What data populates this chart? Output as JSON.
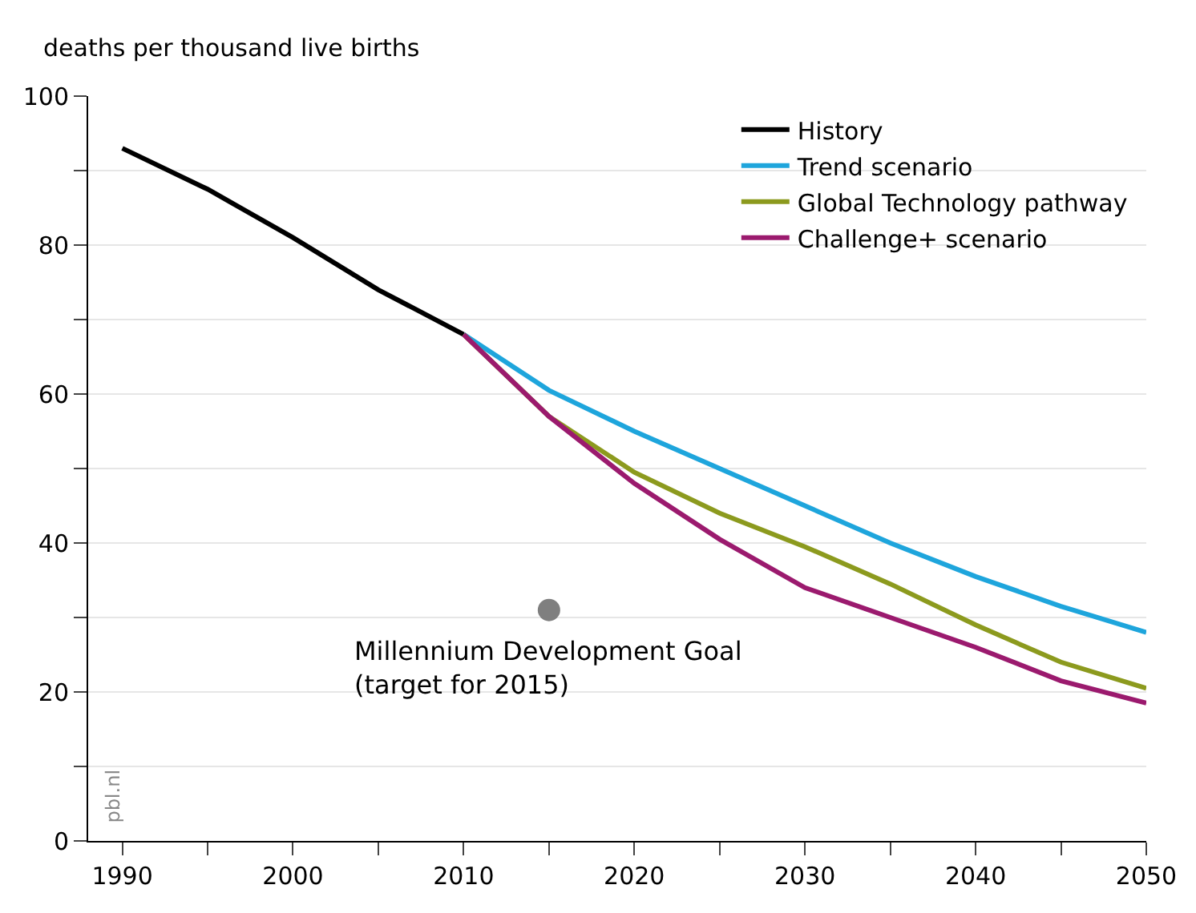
{
  "chart_data": {
    "type": "line",
    "ylabel": "deaths per thousand live births",
    "xlim": [
      1988,
      2050
    ],
    "xticks": [
      1990,
      {
        "value": 1995,
        "label": null
      },
      2000,
      {
        "value": 2005,
        "label": null
      },
      2010,
      {
        "value": 2015,
        "label": null
      },
      2020,
      {
        "value": 2025,
        "label": null
      },
      2030,
      {
        "value": 2035,
        "label": null
      },
      2040,
      {
        "value": 2045,
        "label": null
      },
      2050
    ],
    "ylim": [
      0,
      100
    ],
    "yticks": [
      0,
      {
        "value": 10,
        "label": null
      },
      20,
      {
        "value": 30,
        "label": null
      },
      40,
      {
        "value": 50,
        "label": null
      },
      60,
      {
        "value": 70,
        "label": null
      },
      80,
      {
        "value": 90,
        "label": null
      },
      100
    ],
    "grid": "y",
    "legend": "top right",
    "line_style": "solid",
    "marker": "none",
    "series": [
      {
        "name": "History",
        "color": "#000000",
        "x": [
          1990,
          1995,
          2000,
          2005,
          2010
        ],
        "values": [
          93,
          87.5,
          81,
          74,
          68
        ]
      },
      {
        "name": "Trend scenario",
        "color": "#1ea5dc",
        "x": [
          2010,
          2015,
          2020,
          2025,
          2030,
          2035,
          2040,
          2045,
          2050
        ],
        "values": [
          68,
          60.5,
          55,
          50,
          45,
          40,
          35.5,
          31.5,
          28
        ]
      },
      {
        "name": "Global Technology pathway",
        "color": "#8c9a1e",
        "x": [
          2010,
          2015,
          2020,
          2025,
          2030,
          2035,
          2040,
          2045,
          2050
        ],
        "values": [
          68,
          57,
          49.5,
          44,
          39.5,
          34.5,
          29,
          24,
          20.5
        ]
      },
      {
        "name": "Challenge+ scenario",
        "color": "#9b1a6e",
        "x": [
          2010,
          2015,
          2020,
          2025,
          2030,
          2035,
          2040,
          2045,
          2050
        ],
        "values": [
          68,
          57,
          48,
          40.5,
          34,
          30,
          26,
          21.5,
          18.5
        ]
      },
      {
        "type": "scatter",
        "marker": "circle",
        "color": "#7f7f7f",
        "x": [
          2015
        ],
        "values": [
          31
        ]
      }
    ],
    "annotations": [
      {
        "text": "Millennium Development Goal\n(target for 2015)",
        "x": 2015,
        "y": 31
      },
      "pbl.nl"
    ]
  }
}
